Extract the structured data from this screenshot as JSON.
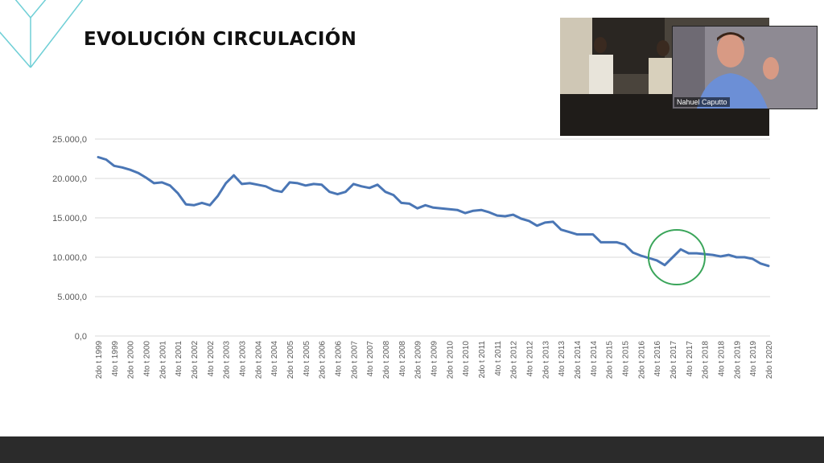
{
  "slide": {
    "title": "EVOLUCIÓN CIRCULACIÓN"
  },
  "video": {
    "speaker_name": "Nahuel Caputto"
  },
  "colors": {
    "line": "#4a76b5",
    "grid": "#d9d9d9",
    "highlight_circle": "#3aa55a",
    "decor": "#6fcfd6"
  },
  "chart_data": {
    "type": "line",
    "title": "",
    "xlabel": "",
    "ylabel": "",
    "ylim": [
      0,
      25000
    ],
    "yticks": [
      0,
      5000,
      10000,
      15000,
      20000,
      25000
    ],
    "ytick_labels": [
      "0,0",
      "5.000,0",
      "10.000,0",
      "15.000,0",
      "20.000,0",
      "25.000,0"
    ],
    "grid": true,
    "x_labels": [
      "2do t 1999",
      "4to t 1999",
      "2do t 2000",
      "4to t 2000",
      "2do t 2001",
      "4to t 2001",
      "2do t 2002",
      "4to t 2002",
      "2do t 2003",
      "4to t 2003",
      "2do t 2004",
      "4to t 2004",
      "2do t 2005",
      "4to t 2005",
      "2do t 2006",
      "4to t 2006",
      "2do t 2007",
      "4to t 2007",
      "2do t 2008",
      "4to t 2008",
      "2do t 2009",
      "4to t 2009",
      "2do t 2010",
      "4to t 2010",
      "2do t 2011",
      "4to t 2011",
      "2do t 2012",
      "4to t 2012",
      "2do t 2013",
      "4to t 2013",
      "2do t 2014",
      "4to t 2014",
      "2do t 2015",
      "4to t 2015",
      "2do t 2016",
      "4to t 2016",
      "2do t 2017",
      "4to t 2017",
      "2do t 2018",
      "4to t 2018",
      "2do t 2019",
      "4to t 2019",
      "2do t 2020"
    ],
    "values": [
      22700,
      22400,
      21600,
      21400,
      21100,
      20700,
      20100,
      19400,
      19500,
      19100,
      18100,
      16700,
      16600,
      16900,
      16600,
      17800,
      19400,
      20400,
      19300,
      19400,
      19200,
      19000,
      18500,
      18300,
      19500,
      19400,
      19100,
      19300,
      19200,
      18300,
      18000,
      18300,
      19300,
      19000,
      18800,
      19200,
      18300,
      17900,
      16900,
      16800,
      16200,
      16600,
      16300,
      16200,
      16100,
      16000,
      15600,
      15900,
      16000,
      15700,
      15300,
      15200,
      15400,
      14900,
      14600,
      14000,
      14400,
      14500,
      13500,
      13200,
      12900,
      12900,
      12900,
      11900,
      11900,
      11900,
      11600,
      10600,
      10200,
      9900,
      9600,
      9000,
      10000,
      11000,
      10500,
      10500,
      10400,
      10300,
      10100,
      10300,
      10000,
      10000,
      9800,
      9200,
      8900
    ],
    "highlight": {
      "shape": "circle",
      "around": "4to t 2016 – 4to t 2017"
    }
  }
}
